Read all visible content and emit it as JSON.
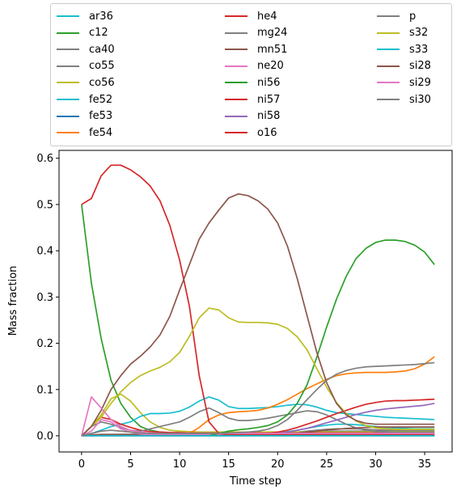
{
  "chart_data": {
    "type": "line",
    "xlabel": "Time step",
    "ylabel": "Mass fraction",
    "xlim": [
      -2.3,
      37.8
    ],
    "ylim": [
      -0.035,
      0.617
    ],
    "xticks": [
      0,
      5,
      10,
      15,
      20,
      25,
      30,
      35
    ],
    "yticks": [
      0.0,
      0.1,
      0.2,
      0.3,
      0.4,
      0.5,
      0.6
    ],
    "grid": false,
    "legend_placement": "above plot, 3 columns",
    "x": [
      0,
      1,
      2,
      3,
      4,
      5,
      6,
      7,
      8,
      9,
      10,
      11,
      12,
      13,
      14,
      15,
      16,
      17,
      18,
      19,
      20,
      21,
      22,
      23,
      24,
      25,
      26,
      27,
      28,
      29,
      30,
      31,
      32,
      33,
      34,
      35,
      36
    ],
    "series": [
      {
        "name": "ar36",
        "color": "#17becf",
        "values": [
          0,
          0.001,
          0.002,
          0.002,
          0.003,
          0.003,
          0.003,
          0.003,
          0.003,
          0.003,
          0.003,
          0.003,
          0.003,
          0.003,
          0.003,
          0.004,
          0.004,
          0.004,
          0.005,
          0.006,
          0.007,
          0.009,
          0.012,
          0.016,
          0.02,
          0.023,
          0.025,
          0.025,
          0.024,
          0.022,
          0.02,
          0.018,
          0.017,
          0.016,
          0.015,
          0.015,
          0.015
        ]
      },
      {
        "name": "c12",
        "color": "#2ca02c",
        "values": [
          0.5,
          0.33,
          0.21,
          0.12,
          0.07,
          0.04,
          0.02,
          0.012,
          0.008,
          0.006,
          0.005,
          0.005,
          0.005,
          0.005,
          0.005,
          0.005,
          0.005,
          0.005,
          0.005,
          0.005,
          0.005,
          0.005,
          0.005,
          0.005,
          0.005,
          0.005,
          0.005,
          0.005,
          0.005,
          0.005,
          0.005,
          0.005,
          0.005,
          0.005,
          0.005,
          0.005,
          0.005
        ]
      },
      {
        "name": "ca40",
        "color": "#7f7f7f",
        "values": [
          0,
          0.001,
          0.002,
          0.002,
          0.002,
          0.002,
          0.002,
          0.002,
          0.002,
          0.002,
          0.002,
          0.002,
          0.002,
          0.002,
          0.002,
          0.002,
          0.003,
          0.003,
          0.003,
          0.004,
          0.005,
          0.006,
          0.008,
          0.01,
          0.012,
          0.014,
          0.015,
          0.015,
          0.015,
          0.014,
          0.013,
          0.012,
          0.012,
          0.011,
          0.011,
          0.011,
          0.011
        ]
      },
      {
        "name": "co55",
        "color": "#7f7f7f",
        "values": [
          0,
          0.001,
          0.002,
          0.002,
          0.002,
          0.002,
          0.002,
          0.002,
          0.002,
          0.002,
          0.002,
          0.002,
          0.002,
          0.002,
          0.002,
          0.002,
          0.002,
          0.002,
          0.003,
          0.003,
          0.004,
          0.005,
          0.006,
          0.007,
          0.008,
          0.009,
          0.01,
          0.01,
          0.01,
          0.01,
          0.01,
          0.01,
          0.01,
          0.01,
          0.01,
          0.01,
          0.01
        ]
      },
      {
        "name": "co56",
        "color": "#bcbd22",
        "values": [
          0,
          0.02,
          0.045,
          0.08,
          0.09,
          0.075,
          0.05,
          0.03,
          0.018,
          0.012,
          0.01,
          0.009,
          0.008,
          0.008,
          0.008,
          0.008,
          0.008,
          0.008,
          0.008,
          0.008,
          0.008,
          0.008,
          0.008,
          0.008,
          0.008,
          0.008,
          0.008,
          0.008,
          0.008,
          0.008,
          0.008,
          0.008,
          0.008,
          0.008,
          0.008,
          0.008,
          0.008
        ]
      },
      {
        "name": "fe52",
        "color": "#17becf",
        "values": [
          0,
          0.005,
          0.012,
          0.02,
          0.025,
          0.03,
          0.042,
          0.048,
          0.048,
          0.049,
          0.053,
          0.062,
          0.075,
          0.084,
          0.077,
          0.063,
          0.059,
          0.059,
          0.06,
          0.061,
          0.063,
          0.066,
          0.068,
          0.067,
          0.062,
          0.055,
          0.05,
          0.048,
          0.046,
          0.044,
          0.042,
          0.04,
          0.039,
          0.038,
          0.037,
          0.036,
          0.035
        ]
      },
      {
        "name": "fe53",
        "color": "#1f77b4",
        "values": [
          0,
          0.001,
          0.001,
          0.001,
          0.001,
          0.001,
          0.001,
          0.001,
          0.001,
          0.001,
          0.001,
          0.001,
          0.001,
          0.001,
          0.001,
          0.001,
          0.001,
          0.001,
          0.001,
          0.001,
          0.001,
          0.001,
          0.001,
          0.001,
          0.001,
          0.001,
          0.001,
          0.001,
          0.001,
          0.001,
          0.001,
          0.001,
          0.001,
          0.001,
          0.001,
          0.001,
          0.001
        ]
      },
      {
        "name": "fe54",
        "color": "#ff7f0e",
        "values": [
          0,
          0,
          0,
          0,
          0,
          0,
          0,
          0,
          0,
          0,
          0,
          0.005,
          0.018,
          0.035,
          0.045,
          0.05,
          0.052,
          0.053,
          0.055,
          0.06,
          0.068,
          0.078,
          0.09,
          0.102,
          0.112,
          0.122,
          0.13,
          0.134,
          0.136,
          0.137,
          0.137,
          0.137,
          0.138,
          0.14,
          0.145,
          0.155,
          0.171
        ]
      },
      {
        "name": "he4",
        "color": "#d62728",
        "values": [
          0,
          0.02,
          0.04,
          0.035,
          0.025,
          0.018,
          0.012,
          0.009,
          0.008,
          0.007,
          0.007,
          0.006,
          0.006,
          0.006,
          0.006,
          0.006,
          0.006,
          0.006,
          0.006,
          0.006,
          0.006,
          0.006,
          0.006,
          0.006,
          0.006,
          0.006,
          0.006,
          0.006,
          0.006,
          0.006,
          0.006,
          0.006,
          0.006,
          0.006,
          0.006,
          0.006,
          0.006
        ]
      },
      {
        "name": "mg24",
        "color": "#7f7f7f",
        "values": [
          0,
          0.02,
          0.03,
          0.025,
          0.018,
          0.012,
          0.01,
          0.015,
          0.02,
          0.025,
          0.03,
          0.04,
          0.052,
          0.06,
          0.05,
          0.038,
          0.033,
          0.033,
          0.035,
          0.038,
          0.042,
          0.046,
          0.05,
          0.054,
          0.052,
          0.045,
          0.035,
          0.025,
          0.017,
          0.012,
          0.009,
          0.008,
          0.007,
          0.007,
          0.007,
          0.007,
          0.007
        ]
      },
      {
        "name": "mn51",
        "color": "#8c564b",
        "values": [
          0,
          0.002,
          0.003,
          0.003,
          0.003,
          0.003,
          0.003,
          0.003,
          0.003,
          0.003,
          0.003,
          0.003,
          0.003,
          0.003,
          0.003,
          0.003,
          0.003,
          0.003,
          0.003,
          0.003,
          0.004,
          0.005,
          0.006,
          0.008,
          0.01,
          0.012,
          0.014,
          0.016,
          0.017,
          0.018,
          0.019,
          0.019,
          0.019,
          0.019,
          0.019,
          0.019,
          0.019
        ]
      },
      {
        "name": "ne20",
        "color": "#e377c2",
        "values": [
          0,
          0.01,
          0.035,
          0.03,
          0.015,
          0.008,
          0.004,
          0.002,
          0.002,
          0.002,
          0.002,
          0.002,
          0.002,
          0.002,
          0.002,
          0.002,
          0.002,
          0.002,
          0.002,
          0.002,
          0.002,
          0.002,
          0.002,
          0.002,
          0.002,
          0.002,
          0.002,
          0.002,
          0.002,
          0.002,
          0.002,
          0.002,
          0.002,
          0.002,
          0.002,
          0.002,
          0.002
        ]
      },
      {
        "name": "ni56",
        "color": "#2ca02c",
        "values": [
          0,
          0,
          0,
          0,
          0,
          0,
          0,
          0,
          0,
          0,
          0,
          0,
          0,
          0,
          0.005,
          0.01,
          0.013,
          0.015,
          0.018,
          0.022,
          0.03,
          0.045,
          0.07,
          0.11,
          0.17,
          0.235,
          0.295,
          0.345,
          0.383,
          0.405,
          0.418,
          0.423,
          0.423,
          0.42,
          0.412,
          0.397,
          0.37
        ]
      },
      {
        "name": "ni57",
        "color": "#d62728",
        "values": [
          0,
          0,
          0,
          0,
          0,
          0,
          0,
          0,
          0,
          0,
          0,
          0,
          0,
          0,
          0,
          0,
          0.001,
          0.002,
          0.003,
          0.005,
          0.008,
          0.012,
          0.018,
          0.025,
          0.032,
          0.04,
          0.048,
          0.055,
          0.062,
          0.068,
          0.072,
          0.075,
          0.076,
          0.076,
          0.077,
          0.078,
          0.079
        ]
      },
      {
        "name": "ni58",
        "color": "#9467bd",
        "values": [
          0,
          0,
          0,
          0,
          0,
          0,
          0,
          0,
          0,
          0,
          0,
          0,
          0,
          0,
          0,
          0,
          0,
          0.001,
          0.002,
          0.003,
          0.005,
          0.008,
          0.012,
          0.016,
          0.022,
          0.028,
          0.034,
          0.04,
          0.046,
          0.051,
          0.055,
          0.058,
          0.06,
          0.062,
          0.064,
          0.066,
          0.07
        ]
      },
      {
        "name": "o16",
        "color": "#d62728",
        "values": [
          0.5,
          0.513,
          0.562,
          0.585,
          0.585,
          0.575,
          0.56,
          0.54,
          0.508,
          0.455,
          0.38,
          0.28,
          0.13,
          0.03,
          0.005,
          0.002,
          0.002,
          0.002,
          0.002,
          0.002,
          0.002,
          0.002,
          0.002,
          0.002,
          0.002,
          0.002,
          0.002,
          0.002,
          0.002,
          0.002,
          0.002,
          0.002,
          0.002,
          0.002,
          0.002,
          0.002,
          0.002
        ]
      },
      {
        "name": "p",
        "color": "#7f7f7f",
        "values": [
          0,
          0,
          0,
          0,
          0,
          0,
          0,
          0,
          0,
          0,
          0,
          0,
          0,
          0,
          0,
          0,
          0,
          0,
          0,
          0,
          0,
          0,
          0,
          0,
          0,
          0,
          0,
          0,
          0,
          0,
          0,
          0,
          0,
          0,
          0,
          0,
          0
        ]
      },
      {
        "name": "s32",
        "color": "#bcbd22",
        "values": [
          0,
          0.02,
          0.04,
          0.07,
          0.095,
          0.115,
          0.13,
          0.14,
          0.148,
          0.16,
          0.18,
          0.215,
          0.255,
          0.276,
          0.272,
          0.255,
          0.246,
          0.245,
          0.245,
          0.244,
          0.241,
          0.232,
          0.214,
          0.186,
          0.145,
          0.105,
          0.072,
          0.048,
          0.032,
          0.022,
          0.017,
          0.015,
          0.014,
          0.014,
          0.014,
          0.014,
          0.014
        ]
      },
      {
        "name": "s33",
        "color": "#17becf",
        "values": [
          0,
          0,
          0,
          0,
          0,
          0,
          0,
          0,
          0,
          0,
          0,
          0,
          0,
          0,
          0,
          0,
          0,
          0,
          0,
          0,
          0,
          0,
          0,
          0,
          0,
          0,
          0,
          0,
          0,
          0,
          0,
          0,
          0,
          0,
          0,
          0,
          0
        ]
      },
      {
        "name": "si28",
        "color": "#8c564b",
        "values": [
          0,
          0.02,
          0.055,
          0.1,
          0.13,
          0.155,
          0.172,
          0.192,
          0.218,
          0.258,
          0.315,
          0.37,
          0.425,
          0.46,
          0.488,
          0.514,
          0.523,
          0.519,
          0.508,
          0.49,
          0.46,
          0.41,
          0.34,
          0.26,
          0.18,
          0.115,
          0.07,
          0.045,
          0.033,
          0.027,
          0.025,
          0.025,
          0.025,
          0.025,
          0.025,
          0.025,
          0.025
        ]
      },
      {
        "name": "si29",
        "color": "#e377c2",
        "values": [
          0,
          0.084,
          0.06,
          0.035,
          0.02,
          0.012,
          0.008,
          0.006,
          0.005,
          0.005,
          0.005,
          0.005,
          0.005,
          0.005,
          0.005,
          0.005,
          0.005,
          0.005,
          0.005,
          0.005,
          0.005,
          0.005,
          0.005,
          0.005,
          0.005,
          0.005,
          0.005,
          0.005,
          0.005,
          0.005,
          0.005,
          0.005,
          0.005,
          0.005,
          0.005,
          0.005,
          0.005
        ]
      },
      {
        "name": "si30",
        "color": "#7f7f7f",
        "values": [
          0,
          0.005,
          0.01,
          0.012,
          0.01,
          0.008,
          0.006,
          0.005,
          0.005,
          0.005,
          0.005,
          0.005,
          0.005,
          0.005,
          0.005,
          0.006,
          0.007,
          0.008,
          0.01,
          0.014,
          0.022,
          0.035,
          0.055,
          0.078,
          0.1,
          0.12,
          0.133,
          0.141,
          0.146,
          0.149,
          0.15,
          0.151,
          0.152,
          0.153,
          0.154,
          0.156,
          0.158
        ]
      }
    ]
  }
}
